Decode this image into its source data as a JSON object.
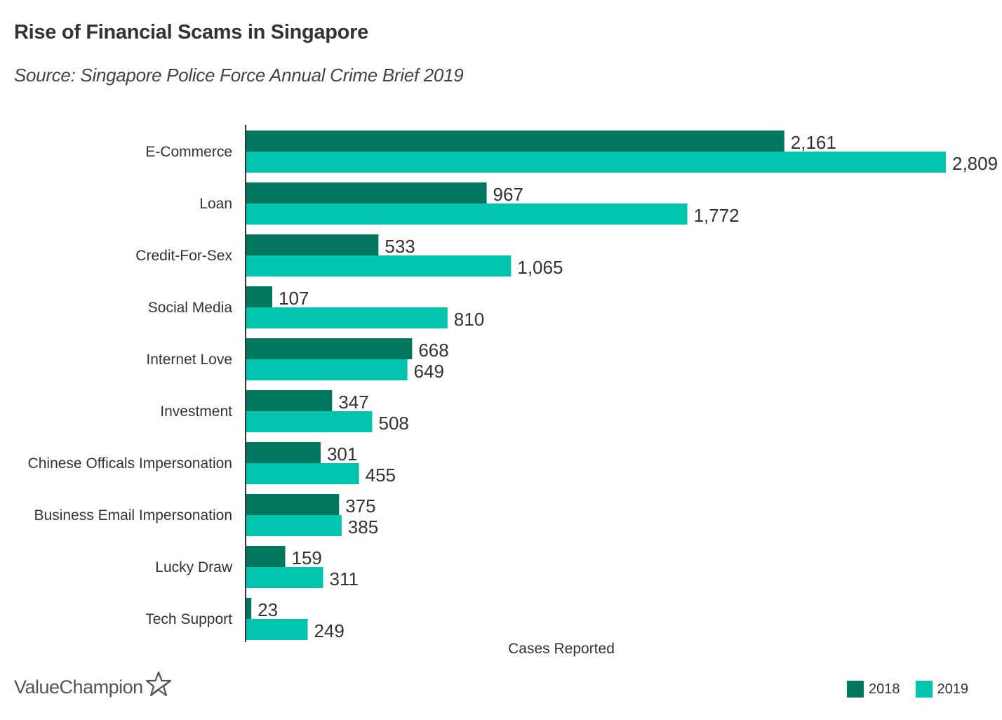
{
  "chart_data": {
    "type": "bar",
    "orientation": "horizontal",
    "title": "Rise of Financial Scams in Singapore",
    "subtitle": "Source: Singapore Police Force Annual Crime Brief 2019",
    "xlabel": "Cases Reported",
    "ylabel": "",
    "xlim": [
      0,
      2809
    ],
    "grid": false,
    "legend_position": "bottom-right",
    "categories": [
      "E-Commerce",
      "Loan",
      "Credit-For-Sex",
      "Social Media",
      "Internet Love",
      "Investment",
      "Chinese Officals Impersonation",
      "Business Email Impersonation",
      "Lucky Draw",
      "Tech Support"
    ],
    "series": [
      {
        "name": "2018",
        "color": "#02775F",
        "values": [
          2161,
          967,
          533,
          107,
          668,
          347,
          301,
          375,
          159,
          23
        ]
      },
      {
        "name": "2019",
        "color": "#00C4AE",
        "values": [
          2809,
          1772,
          1065,
          810,
          649,
          508,
          455,
          385,
          311,
          249
        ]
      }
    ]
  },
  "branding": {
    "logo_text": "ValueChampion",
    "logo_icon": "star-icon"
  }
}
